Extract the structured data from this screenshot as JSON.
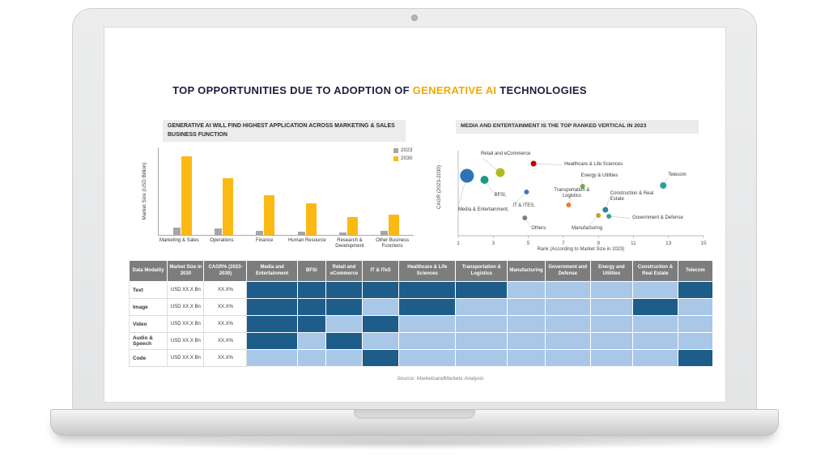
{
  "title": {
    "prefix": "TOP OPPORTUNITIES DUE TO ADOPTION OF ",
    "highlight": "GENERATIVE AI",
    "suffix": " TECHNOLOGIES"
  },
  "source_text": "Source: MarketsandMarkets Analysis",
  "accent_colors": {
    "highlight_orange": "#f2a900",
    "bar_2030_yellow": "#fdb913",
    "bar_2023_gray": "#a6a6a6",
    "header_gray": "#7d7d7d"
  },
  "chart_data": [
    {
      "type": "bar",
      "title": "GENERATIVE AI WILL FIND HIGHEST APPLICATION ACROSS MARKETING & SALES BUSINESS FUNCTION",
      "ylabel": "Market Size (USD Billion)",
      "xlabel": "",
      "categories": [
        "Marketing & Sales",
        "Operations",
        "Finance",
        "Human Resource",
        "Research & Development",
        "Other Business Functions"
      ],
      "series": [
        {
          "name": "2023",
          "color": "#a6a6a6",
          "values": [
            9,
            8,
            5,
            4,
            3,
            5
          ]
        },
        {
          "name": "2030",
          "color": "#fdb913",
          "values": [
            100,
            72,
            50,
            40,
            23,
            26
          ]
        }
      ],
      "ylim": [
        0,
        105
      ],
      "grid": false,
      "legend_position": "top-right",
      "note": "y-axis has no numeric tick labels; values estimated in relative USD billion"
    },
    {
      "type": "scatter",
      "title": "MEDIA AND ENTERTAINMENT IS THE TOP RANKED VERTICAL IN 2023",
      "xlabel": "Rank (According to Market Size in 2023)",
      "ylabel": "CAGR (2023-2030)",
      "xlim": [
        1,
        15
      ],
      "ylim": [
        0,
        10
      ],
      "xticks": [
        1,
        3,
        5,
        7,
        9,
        11,
        13,
        15
      ],
      "grid": false,
      "note": "CAGR axis unlabeled; cagr values are relative estimates",
      "points": [
        {
          "label": "Media & Entertainment,",
          "rank": 1.5,
          "cagr": 7.4,
          "r": 8.5,
          "color": "#2e74b5",
          "ox": -11,
          "oy": 43,
          "anchor": "start"
        },
        {
          "label": "BFSI,",
          "rank": 2.5,
          "cagr": 6.9,
          "r": 5,
          "color": "#1e9688",
          "ox": 12,
          "oy": 20,
          "anchor": "start"
        },
        {
          "label": "Retail and eCommerce",
          "rank": 3.4,
          "cagr": 7.8,
          "r": 5.5,
          "color": "#afbc21",
          "ox": -24,
          "oy": -22,
          "anchor": "start"
        },
        {
          "label": "Healthcare & Life Sciences",
          "rank": 5.3,
          "cagr": 8.9,
          "r": 3.5,
          "color": "#c00000",
          "ox": 38,
          "oy": 2,
          "anchor": "start"
        },
        {
          "label": "IT & ITES,",
          "rank": 4.9,
          "cagr": 5.4,
          "r": 3,
          "color": "#4472c4",
          "ox": -17,
          "oy": 18,
          "anchor": "start"
        },
        {
          "label": "Energy & Utilities",
          "rank": 8.1,
          "cagr": 6.1,
          "r": 3,
          "color": "#70ad47",
          "ox": -2,
          "oy": -12,
          "anchor": "start"
        },
        {
          "label": "Transportation &|Logistics",
          "rank": 7.3,
          "cagr": 3.8,
          "r": 3,
          "color": "#ed7d31",
          "ox": 4,
          "oy": -17,
          "anchor": "middle"
        },
        {
          "label": "Others",
          "rank": 4.8,
          "cagr": 2.2,
          "r": 3,
          "color": "#7f7f7f",
          "ox": 8,
          "oy": 14,
          "anchor": "start"
        },
        {
          "label": "Manufacturing",
          "rank": 9.0,
          "cagr": 2.5,
          "r": 3,
          "color": "#c9a227",
          "ox": -14,
          "oy": 17,
          "anchor": "middle"
        },
        {
          "label": "Construction & Real|Estate",
          "rank": 9.4,
          "cagr": 3.2,
          "r": 3.5,
          "color": "#31859c",
          "ox": 6,
          "oy": -19,
          "anchor": "start"
        },
        {
          "label": "Government & Defense",
          "rank": 9.6,
          "cagr": 2.4,
          "r": 3,
          "color": "#3a9e94",
          "ox": 29,
          "oy": 3,
          "anchor": "start"
        },
        {
          "label": "Telecom",
          "rank": 12.7,
          "cagr": 6.2,
          "r": 4,
          "color": "#2aa198",
          "ox": 6,
          "oy": -12,
          "anchor": "start"
        }
      ]
    }
  ],
  "table": {
    "columns": [
      "Data Modality",
      "Market Size in 2030",
      "CAGR% (2023-2030)",
      "Media and Entertainment",
      "BFSI",
      "Retail and eCommerce",
      "IT & ITeS",
      "Healthcare & Life Sciences",
      "Transportation & Logistics",
      "Manufacturing",
      "Government and Defense",
      "Energy and Utilities",
      "Construction & Real Estate",
      "Telecom"
    ],
    "cell_colors": {
      "D": "#1e5c8a",
      "L": "#a9c7e6"
    },
    "rows": [
      {
        "modality": "Text",
        "market_size": "USD XX.X Bn",
        "cagr": "XX.X%",
        "cells": [
          "D",
          "D",
          "D",
          "D",
          "D",
          "D",
          "L",
          "L",
          "L",
          "L",
          "D"
        ]
      },
      {
        "modality": "Image",
        "market_size": "USD XX.X Bn",
        "cagr": "XX.X%",
        "cells": [
          "D",
          "D",
          "D",
          "L",
          "D",
          "L",
          "L",
          "L",
          "L",
          "D",
          "L"
        ]
      },
      {
        "modality": "Video",
        "market_size": "USD XX.X Bn",
        "cagr": "XX.X%",
        "cells": [
          "D",
          "D",
          "L",
          "D",
          "L",
          "L",
          "L",
          "L",
          "L",
          "L",
          "L"
        ]
      },
      {
        "modality": "Audio & Speech",
        "market_size": "USD XX.X Bn",
        "cagr": "XX.X%",
        "cells": [
          "D",
          "L",
          "D",
          "L",
          "L",
          "L",
          "L",
          "L",
          "L",
          "L",
          "L"
        ]
      },
      {
        "modality": "Code",
        "market_size": "USD XX.X Bn",
        "cagr": "XX.X%",
        "cells": [
          "L",
          "L",
          "L",
          "D",
          "L",
          "L",
          "L",
          "L",
          "L",
          "L",
          "D"
        ]
      }
    ]
  }
}
